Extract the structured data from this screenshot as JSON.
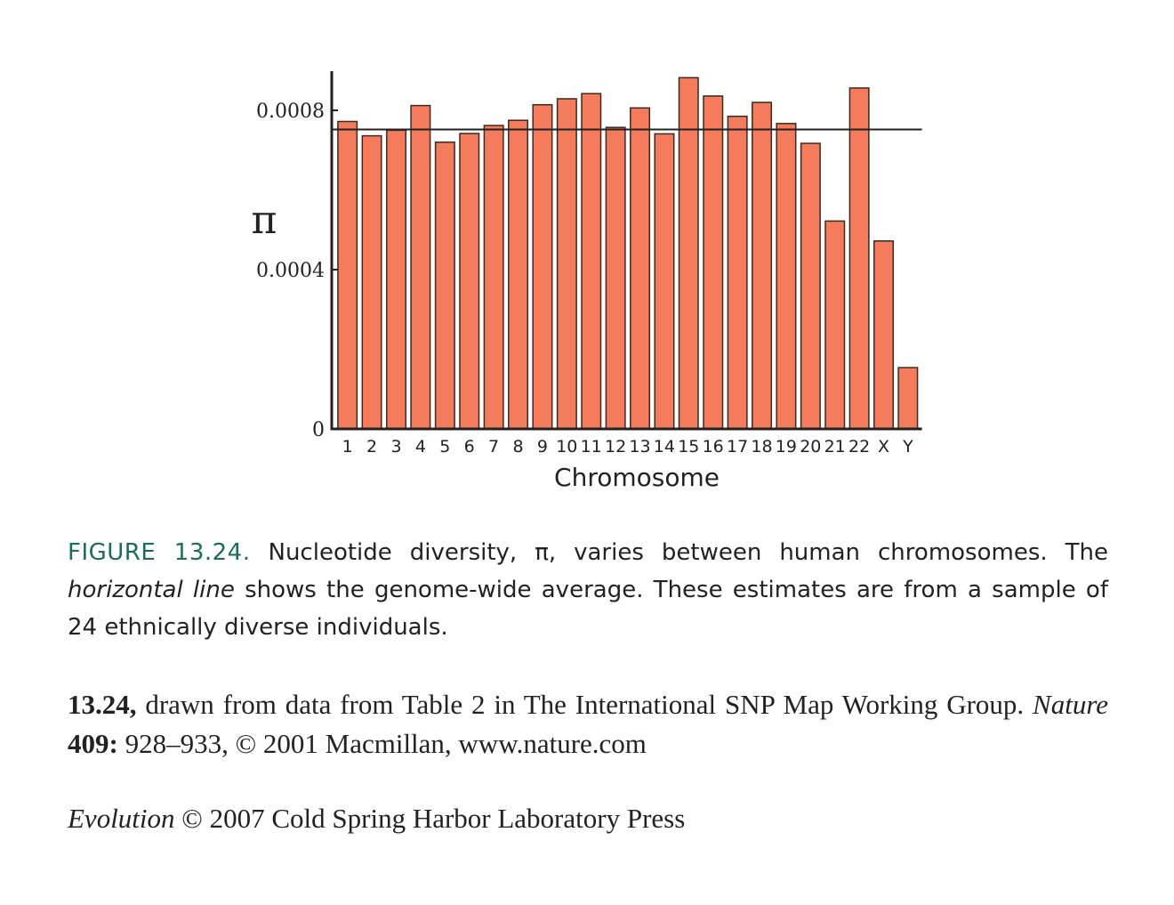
{
  "chart_data": {
    "type": "bar",
    "categories": [
      "1",
      "2",
      "3",
      "4",
      "5",
      "6",
      "7",
      "8",
      "9",
      "10",
      "11",
      "12",
      "13",
      "14",
      "15",
      "16",
      "17",
      "18",
      "19",
      "20",
      "21",
      "22",
      "X",
      "Y"
    ],
    "values": [
      0.000772,
      0.000736,
      0.00075,
      0.000812,
      0.00072,
      0.000742,
      0.000762,
      0.000775,
      0.000814,
      0.000829,
      0.000842,
      0.000757,
      0.000806,
      0.000741,
      0.000882,
      0.000836,
      0.000785,
      0.00082,
      0.000767,
      0.000717,
      0.000522,
      0.000856,
      0.000472,
      0.000154
    ],
    "reference_line": 0.000752,
    "yticks": [
      0,
      0.0004,
      0.0008
    ],
    "ytick_labels": [
      "0",
      "0.0004",
      "0.0008"
    ],
    "ylim": [
      0,
      0.0009
    ],
    "xlabel": "Chromosome",
    "ylabel": "π",
    "bar_color": "#f47c5c",
    "bar_edge_color": "#3a2a22"
  },
  "caption": {
    "label": "FIGURE 13.24.",
    "text_1": " Nucleotide diversity, π, varies between human chromosomes. The ",
    "italic": "horizontal line",
    "text_2": " shows the genome-wide average. These estimates are from a sample of 24 ethnically diverse individuals."
  },
  "source": {
    "bold_1": "13.24,",
    "text_1": " drawn from data from Table 2 in The International SNP Map Working Group. ",
    "italic": "Nature",
    "text_2": " ",
    "bold_2": "409:",
    "text_3": " 928–933, © 2001 Macmillan, www.nature.com"
  },
  "copyright": {
    "italic": "Evolution",
    "text": " © 2007 Cold Spring Harbor Laboratory Press"
  }
}
